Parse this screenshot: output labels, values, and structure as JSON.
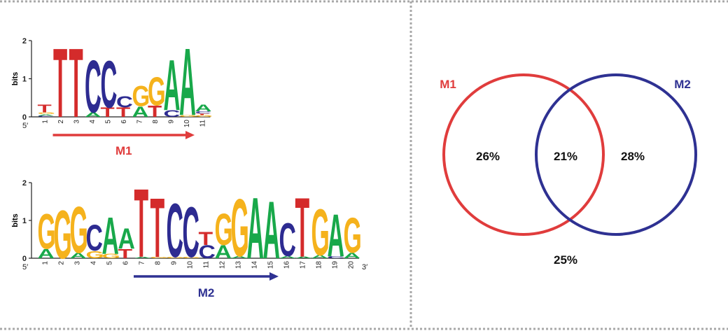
{
  "colors": {
    "A": "#18a84a",
    "C": "#2d2b91",
    "G": "#f5b21c",
    "T": "#d42b2b",
    "m1": "#e03c3c",
    "m2": "#2e3192",
    "border": "#a8a8a8"
  },
  "logos": [
    {
      "id": "M1",
      "ylabel": "bits",
      "yticks": [
        "0",
        "1",
        "2"
      ],
      "ymax": 2,
      "start_label": "5′",
      "end_label": "",
      "arrow_label": "M1",
      "arrow_from_pos": 2,
      "arrow_to_pos": 10,
      "positions": [
        {
          "pos": "1",
          "letters": [
            [
              "C",
              0.03
            ],
            [
              "A",
              0.04
            ],
            [
              "G",
              0.05
            ],
            [
              "T",
              0.2
            ]
          ]
        },
        {
          "pos": "2",
          "letters": [
            [
              "T",
              1.85
            ]
          ]
        },
        {
          "pos": "3",
          "letters": [
            [
              "T",
              1.85
            ]
          ]
        },
        {
          "pos": "4",
          "letters": [
            [
              "A",
              0.12
            ],
            [
              "C",
              1.4
            ]
          ]
        },
        {
          "pos": "5",
          "letters": [
            [
              "T",
              0.25
            ],
            [
              "C",
              1.25
            ]
          ]
        },
        {
          "pos": "6",
          "letters": [
            [
              "T",
              0.25
            ],
            [
              "C",
              0.3
            ]
          ]
        },
        {
          "pos": "7",
          "letters": [
            [
              "A",
              0.28
            ],
            [
              "G",
              0.55
            ]
          ]
        },
        {
          "pos": "8",
          "letters": [
            [
              "T",
              0.3
            ],
            [
              "G",
              0.75
            ]
          ]
        },
        {
          "pos": "9",
          "letters": [
            [
              "C",
              0.18
            ],
            [
              "A",
              1.35
            ]
          ]
        },
        {
          "pos": "10",
          "letters": [
            [
              "G",
              0.05
            ],
            [
              "A",
              1.8
            ]
          ]
        },
        {
          "pos": "11",
          "letters": [
            [
              "G",
              0.05
            ],
            [
              "T",
              0.04
            ],
            [
              "C",
              0.06
            ],
            [
              "A",
              0.18
            ]
          ]
        }
      ]
    },
    {
      "id": "M2",
      "ylabel": "bits",
      "yticks": [
        "0",
        "1",
        "2"
      ],
      "ymax": 2,
      "start_label": "5′",
      "end_label": "3′",
      "arrow_label": "M2",
      "arrow_from_pos": 7,
      "arrow_to_pos": 15,
      "positions": [
        {
          "pos": "1",
          "letters": [
            [
              "A",
              0.25
            ],
            [
              "G",
              0.95
            ]
          ]
        },
        {
          "pos": "2",
          "letters": [
            [
              "G",
              1.3
            ]
          ]
        },
        {
          "pos": "3",
          "letters": [
            [
              "A",
              0.15
            ],
            [
              "G",
              1.25
            ]
          ]
        },
        {
          "pos": "4",
          "letters": [
            [
              "G",
              0.2
            ],
            [
              "C",
              0.7
            ]
          ]
        },
        {
          "pos": "5",
          "letters": [
            [
              "G",
              0.12
            ],
            [
              "A",
              1.0
            ]
          ]
        },
        {
          "pos": "6",
          "letters": [
            [
              "T",
              0.25
            ],
            [
              "A",
              0.55
            ]
          ]
        },
        {
          "pos": "7",
          "letters": [
            [
              "A",
              0.04
            ],
            [
              "T",
              1.85
            ]
          ]
        },
        {
          "pos": "8",
          "letters": [
            [
              "G",
              0.04
            ],
            [
              "T",
              1.6
            ]
          ]
        },
        {
          "pos": "9",
          "letters": [
            [
              "G",
              0.04
            ],
            [
              "C",
              1.45
            ]
          ]
        },
        {
          "pos": "10",
          "letters": [
            [
              "G",
              0.04
            ],
            [
              "C",
              1.35
            ]
          ]
        },
        {
          "pos": "11",
          "letters": [
            [
              "C",
              0.35
            ],
            [
              "T",
              0.35
            ]
          ]
        },
        {
          "pos": "12",
          "letters": [
            [
              "A",
              0.35
            ],
            [
              "G",
              0.85
            ]
          ]
        },
        {
          "pos": "13",
          "letters": [
            [
              "A",
              0.06
            ],
            [
              "G",
              1.55
            ]
          ]
        },
        {
          "pos": "14",
          "letters": [
            [
              "A",
              1.65
            ]
          ]
        },
        {
          "pos": "15",
          "letters": [
            [
              "A",
              1.55
            ]
          ]
        },
        {
          "pos": "16",
          "letters": [
            [
              "A",
              0.06
            ],
            [
              "C",
              0.9
            ]
          ]
        },
        {
          "pos": "17",
          "letters": [
            [
              "A",
              0.05
            ],
            [
              "T",
              1.6
            ]
          ]
        },
        {
          "pos": "18",
          "letters": [
            [
              "A",
              0.08
            ],
            [
              "G",
              1.25
            ]
          ]
        },
        {
          "pos": "19",
          "letters": [
            [
              "C",
              0.06
            ],
            [
              "A",
              1.15
            ]
          ]
        },
        {
          "pos": "20",
          "letters": [
            [
              "A",
              0.15
            ],
            [
              "G",
              0.95
            ]
          ]
        }
      ]
    }
  ],
  "venn": {
    "left_label": "M1",
    "right_label": "M2",
    "left_only": "26%",
    "overlap": "21%",
    "right_only": "28%",
    "neither": "25%"
  }
}
